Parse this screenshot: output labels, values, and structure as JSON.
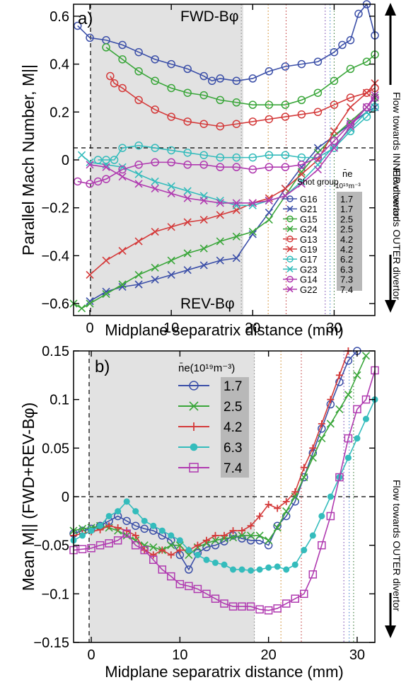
{
  "chart_data": [
    {
      "type": "line",
      "panel_label": "a)",
      "ylabel": "Parallel Mach Number, M||",
      "xlabel": "Midplane separatrix distance (mm)",
      "xlim": [
        -2,
        35
      ],
      "ylim": [
        -0.65,
        0.65
      ],
      "xticks": [
        "0",
        "10",
        "20",
        "30"
      ],
      "yticks": [
        "−0.6",
        "−0.4",
        "−0.2",
        "0",
        "0.2",
        "0.4",
        "0.6"
      ],
      "shaded_region_x": [
        0,
        18.5
      ],
      "vertical_dotted_lines_x": [
        18.6,
        21.9,
        24.1,
        28.9,
        29.5,
        30.0
      ],
      "annotation_top": "FWD-Bφ",
      "annotation_bottom": "REV-Bφ",
      "right_label_top": "Flow towards INNER divertor",
      "right_label_bottom": "Flow towards OUTER divertor",
      "legend_header_shot": "Shot group",
      "legend_header_ne": "n̄e",
      "legend_header_unit": "10¹⁹m⁻³",
      "series": [
        {
          "name": "G16",
          "ne": "1.7",
          "color": "#3b4fa8",
          "marker": "o",
          "x": [
            -1.5,
            0,
            2,
            4,
            6,
            8,
            10,
            12,
            14,
            15,
            16,
            18,
            20,
            22,
            24,
            26,
            28,
            30,
            31,
            32,
            33,
            34,
            35
          ],
          "y": [
            0.56,
            0.51,
            0.5,
            0.48,
            0.45,
            0.42,
            0.4,
            0.38,
            0.35,
            0.33,
            0.34,
            0.33,
            0.34,
            0.37,
            0.39,
            0.4,
            0.41,
            0.45,
            0.48,
            0.5,
            0.61,
            0.66,
            0.52
          ]
        },
        {
          "name": "G21",
          "ne": "1.7",
          "color": "#3b4fa8",
          "marker": "x",
          "x": [
            0,
            2,
            4,
            6,
            8,
            10,
            12,
            14,
            16,
            18,
            20,
            22,
            24,
            26,
            28,
            30,
            32,
            34,
            35
          ],
          "y": [
            -0.59,
            -0.55,
            -0.53,
            -0.52,
            -0.5,
            -0.48,
            -0.46,
            -0.44,
            -0.42,
            -0.41,
            -0.31,
            -0.22,
            -0.12,
            -0.03,
            0.05,
            0.1,
            0.15,
            0.2,
            0.22
          ]
        },
        {
          "name": "G15",
          "ne": "2.5",
          "color": "#3aa63a",
          "marker": "o",
          "x": [
            2,
            4,
            6,
            8,
            10,
            12,
            14,
            16,
            18,
            20,
            22,
            24,
            26,
            28,
            30,
            32,
            34,
            35
          ],
          "y": [
            0.47,
            0.42,
            0.37,
            0.33,
            0.3,
            0.28,
            0.27,
            0.25,
            0.24,
            0.23,
            0.23,
            0.23,
            0.25,
            0.28,
            0.33,
            0.38,
            0.41,
            0.44
          ]
        },
        {
          "name": "G24",
          "ne": "2.5",
          "color": "#3aa63a",
          "marker": "x",
          "x": [
            -2,
            -1,
            0,
            2,
            4,
            6,
            8,
            10,
            12,
            14,
            16,
            18,
            20,
            22,
            24,
            26,
            28,
            30,
            32,
            34,
            35
          ],
          "y": [
            -0.6,
            -0.62,
            -0.6,
            -0.56,
            -0.52,
            -0.48,
            -0.45,
            -0.42,
            -0.39,
            -0.37,
            -0.34,
            -0.32,
            -0.3,
            -0.25,
            -0.15,
            -0.05,
            0.03,
            0.1,
            0.16,
            0.22,
            0.26
          ]
        },
        {
          "name": "G13",
          "ne": "4.2",
          "color": "#d43a3a",
          "marker": "o",
          "x": [
            2.5,
            3,
            4,
            6,
            8,
            10,
            12,
            14,
            16,
            18,
            20,
            22,
            24,
            26,
            28,
            30,
            32,
            34,
            35
          ],
          "y": [
            0.35,
            0.32,
            0.3,
            0.25,
            0.21,
            0.18,
            0.16,
            0.15,
            0.14,
            0.15,
            0.16,
            0.17,
            0.18,
            0.19,
            0.2,
            0.23,
            0.26,
            0.28,
            0.3
          ]
        },
        {
          "name": "G19",
          "ne": "4.2",
          "color": "#d43a3a",
          "marker": "x",
          "x": [
            0,
            2,
            4,
            6,
            8,
            10,
            12,
            14,
            16,
            18,
            20,
            22,
            24,
            26,
            28,
            30,
            32,
            34,
            35
          ],
          "y": [
            -0.48,
            -0.42,
            -0.38,
            -0.34,
            -0.3,
            -0.28,
            -0.26,
            -0.25,
            -0.23,
            -0.21,
            -0.18,
            -0.16,
            -0.12,
            -0.06,
            0.0,
            0.12,
            0.22,
            0.28,
            0.32
          ]
        },
        {
          "name": "G17",
          "ne": "6.2",
          "color": "#34bcbc",
          "marker": "o",
          "x": [
            1,
            2,
            3,
            4,
            6,
            8,
            10,
            12,
            14,
            16,
            18,
            20,
            22,
            24,
            26,
            28,
            30,
            32,
            34,
            35
          ],
          "y": [
            0.0,
            0.0,
            0.0,
            0.05,
            0.06,
            0.05,
            0.04,
            0.03,
            0.02,
            0.01,
            0.01,
            0.01,
            0.02,
            0.02,
            0.01,
            0.01,
            0.05,
            0.12,
            0.18,
            0.22
          ]
        },
        {
          "name": "G23",
          "ne": "6.3",
          "color": "#34bcbc",
          "marker": "x",
          "x": [
            -1,
            0,
            2,
            4,
            6,
            8,
            10,
            12,
            14,
            16,
            18,
            20,
            22,
            24,
            26,
            28,
            30,
            32,
            34,
            35
          ],
          "y": [
            0.02,
            -0.01,
            -0.02,
            -0.03,
            -0.06,
            -0.09,
            -0.11,
            -0.13,
            -0.15,
            -0.17,
            -0.19,
            -0.19,
            -0.17,
            -0.15,
            -0.09,
            -0.02,
            0.06,
            0.13,
            0.2,
            0.24
          ]
        },
        {
          "name": "G14",
          "ne": "7.3",
          "color": "#b03ab0",
          "marker": "o",
          "x": [
            -1.5,
            0,
            1,
            2,
            4,
            6,
            8,
            10,
            12,
            14,
            16,
            18,
            20,
            22,
            24,
            26,
            28,
            30,
            32,
            34,
            35
          ],
          "y": [
            -0.09,
            -0.1,
            -0.09,
            -0.08,
            -0.04,
            -0.02,
            -0.01,
            -0.01,
            -0.02,
            -0.02,
            -0.03,
            -0.03,
            -0.04,
            -0.03,
            -0.03,
            -0.02,
            0.01,
            0.08,
            0.15,
            0.22,
            0.26
          ]
        },
        {
          "name": "G22",
          "ne": "7.4",
          "color": "#b03ab0",
          "marker": "x",
          "x": [
            0,
            2,
            4,
            6,
            8,
            10,
            12,
            14,
            16,
            18,
            20,
            22,
            24,
            26,
            28,
            30,
            32,
            34,
            35
          ],
          "y": [
            -0.02,
            -0.03,
            -0.07,
            -0.1,
            -0.12,
            -0.14,
            -0.16,
            -0.17,
            -0.18,
            -0.18,
            -0.18,
            -0.17,
            -0.15,
            -0.1,
            -0.04,
            0.05,
            0.14,
            0.22,
            0.27
          ]
        }
      ]
    },
    {
      "type": "line",
      "panel_label": "b)",
      "ylabel": "Mean M|| (FWD+REV-Bφ)",
      "xlabel": "Midplane separatrix distance (mm)",
      "xlim": [
        -2,
        32
      ],
      "ylim": [
        -0.15,
        0.15
      ],
      "xticks": [
        "0",
        "10",
        "20",
        "30"
      ],
      "yticks": [
        "−0.15",
        "−0.1",
        "−0.05",
        "0",
        "0.05",
        "0.1",
        "0.15"
      ],
      "shaded_region_x": [
        0,
        18.3
      ],
      "vertical_dotted_lines_x": [
        18.4,
        21.4,
        23.7,
        28.5,
        29.1,
        29.6
      ],
      "right_label_bottom": "Flow towards OUTER divertor",
      "legend_title": "n̄e(10¹⁹m⁻³)",
      "series": [
        {
          "name": "1.7",
          "color": "#3b4fa8",
          "marker": "o",
          "x": [
            -2,
            -1,
            0,
            1,
            2,
            3,
            4,
            5,
            6,
            7,
            8,
            9,
            10,
            11,
            12,
            13,
            14,
            15,
            16,
            17,
            18,
            19,
            20,
            21,
            22,
            23,
            24,
            25,
            26,
            27,
            28,
            29,
            30
          ],
          "y": [
            -0.038,
            -0.035,
            -0.033,
            -0.03,
            -0.025,
            -0.02,
            -0.025,
            -0.03,
            -0.033,
            -0.035,
            -0.04,
            -0.045,
            -0.06,
            -0.075,
            -0.058,
            -0.052,
            -0.05,
            -0.046,
            -0.04,
            -0.043,
            -0.045,
            -0.045,
            -0.05,
            -0.03,
            -0.02,
            -0.005,
            0.02,
            0.045,
            0.07,
            0.095,
            0.118,
            0.14,
            0.155
          ]
        },
        {
          "name": "2.5",
          "color": "#3aa63a",
          "marker": "x",
          "x": [
            -2,
            -1,
            0,
            1,
            2,
            3,
            4,
            5,
            6,
            7,
            8,
            9,
            10,
            11,
            12,
            13,
            14,
            15,
            16,
            17,
            18,
            19,
            20,
            21,
            22,
            23,
            24,
            25,
            26,
            27,
            28,
            29,
            30,
            31
          ],
          "y": [
            -0.035,
            -0.033,
            -0.032,
            -0.03,
            -0.032,
            -0.035,
            -0.04,
            -0.045,
            -0.05,
            -0.052,
            -0.055,
            -0.05,
            -0.05,
            -0.06,
            -0.052,
            -0.048,
            -0.045,
            -0.043,
            -0.042,
            -0.04,
            -0.04,
            -0.04,
            -0.045,
            -0.032,
            -0.015,
            0.0,
            0.02,
            0.04,
            0.06,
            0.075,
            0.09,
            0.105,
            0.125,
            0.145
          ]
        },
        {
          "name": "4.2",
          "color": "#d43a3a",
          "marker": "+",
          "x": [
            -2,
            -1,
            0,
            1,
            2,
            3,
            4,
            5,
            6,
            7,
            8,
            9,
            10,
            11,
            12,
            13,
            14,
            15,
            16,
            17,
            18,
            19,
            20,
            21,
            22,
            23,
            24,
            25,
            26,
            27,
            28,
            29
          ],
          "y": [
            -0.04,
            -0.038,
            -0.036,
            -0.034,
            -0.03,
            -0.032,
            -0.035,
            -0.04,
            -0.055,
            -0.06,
            -0.055,
            -0.06,
            -0.055,
            -0.055,
            -0.05,
            -0.045,
            -0.04,
            -0.04,
            -0.035,
            -0.035,
            -0.03,
            -0.02,
            -0.008,
            -0.012,
            -0.005,
            0.005,
            0.03,
            0.05,
            0.075,
            0.1,
            0.125,
            0.15
          ]
        },
        {
          "name": "6.3",
          "color": "#34bcbc",
          "marker": "*",
          "x": [
            -2,
            -1,
            0,
            1,
            2,
            3,
            4,
            5,
            6,
            7,
            8,
            9,
            10,
            11,
            12,
            13,
            14,
            15,
            16,
            17,
            18,
            19,
            20,
            21,
            22,
            23,
            24,
            25,
            26,
            27,
            28,
            29,
            30,
            31,
            32
          ],
          "y": [
            -0.045,
            -0.04,
            -0.035,
            -0.03,
            -0.02,
            -0.015,
            -0.005,
            -0.015,
            -0.025,
            -0.03,
            -0.035,
            -0.04,
            -0.045,
            -0.055,
            -0.06,
            -0.065,
            -0.068,
            -0.07,
            -0.075,
            -0.075,
            -0.076,
            -0.075,
            -0.073,
            -0.072,
            -0.075,
            -0.07,
            -0.055,
            -0.04,
            -0.02,
            0.0,
            0.02,
            0.04,
            0.06,
            0.08,
            0.1
          ]
        },
        {
          "name": "7.4",
          "color": "#b03ab0",
          "marker": "s",
          "x": [
            -2,
            -1,
            0,
            1,
            2,
            3,
            4,
            5,
            6,
            7,
            8,
            9,
            10,
            11,
            12,
            13,
            14,
            15,
            16,
            17,
            18,
            19,
            20,
            21,
            22,
            23,
            24,
            25,
            26,
            27,
            28,
            29,
            30,
            31,
            32
          ],
          "y": [
            -0.055,
            -0.054,
            -0.053,
            -0.05,
            -0.048,
            -0.045,
            -0.038,
            -0.05,
            -0.055,
            -0.065,
            -0.075,
            -0.082,
            -0.09,
            -0.092,
            -0.095,
            -0.1,
            -0.105,
            -0.11,
            -0.113,
            -0.113,
            -0.113,
            -0.116,
            -0.117,
            -0.115,
            -0.11,
            -0.105,
            -0.1,
            -0.08,
            -0.05,
            -0.02,
            0.02,
            0.06,
            0.09,
            0.1,
            0.13
          ]
        }
      ]
    }
  ]
}
